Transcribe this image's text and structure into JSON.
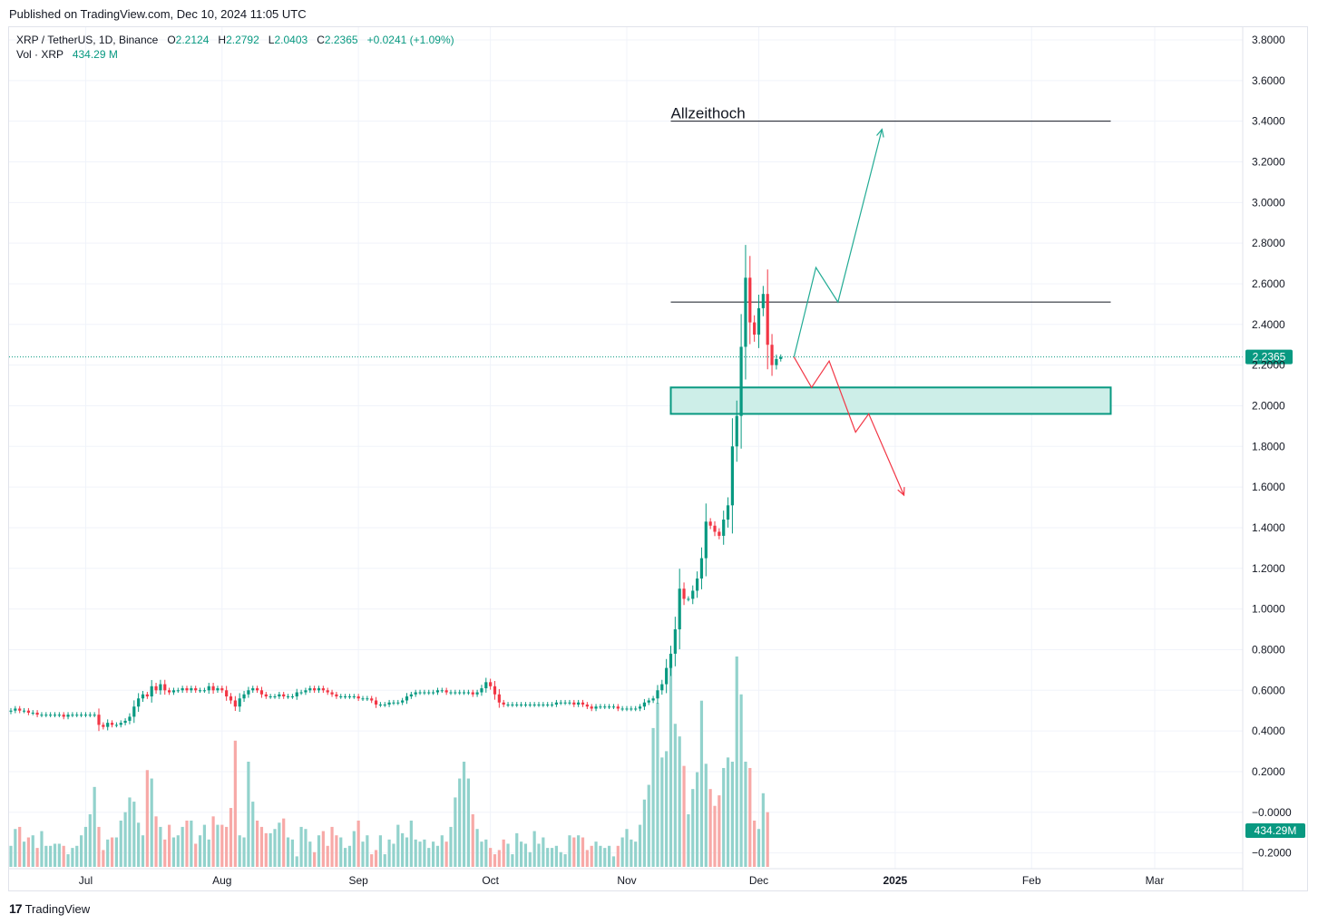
{
  "header": {
    "published": "Published on TradingView.com, Dec 10, 2024 11:05 UTC"
  },
  "legend": {
    "symbol": "XRP / TetherUS, 1D, Binance",
    "o_label": "O",
    "o_value": "2.2124",
    "h_label": "H",
    "h_value": "2.2792",
    "l_label": "L",
    "l_value": "2.0403",
    "c_label": "C",
    "c_value": "2.2365",
    "change": "+0.0241 (+1.09%)",
    "vol_label": "Vol · XRP",
    "vol_value": "434.29 M"
  },
  "footer": {
    "brand": "TradingView",
    "brand_mark": "17"
  },
  "colors": {
    "up": "#089981",
    "down": "#f23645",
    "vol_up": "#92d2cc",
    "vol_down": "#f7a9a7",
    "zone_fill": "#cdeee8",
    "zone_stroke": "#089981",
    "grid": "#f0f3fa"
  },
  "chart_data": {
    "type": "candlestick",
    "title": "XRP / TetherUS, 1D, Binance",
    "y_ticks": [
      "3.8000",
      "3.6000",
      "3.4000",
      "3.2000",
      "3.0000",
      "2.8000",
      "2.6000",
      "2.4000",
      "2.2000",
      "2.0000",
      "1.8000",
      "1.6000",
      "1.4000",
      "1.2000",
      "1.0000",
      "0.8000",
      "0.6000",
      "0.4000",
      "0.2000",
      "−0.0000",
      "−0.2000"
    ],
    "x_labels": [
      {
        "label": "Jul",
        "t": 17
      },
      {
        "label": "Aug",
        "t": 48
      },
      {
        "label": "Sep",
        "t": 79
      },
      {
        "label": "Oct",
        "t": 109
      },
      {
        "label": "Nov",
        "t": 140
      },
      {
        "label": "Dec",
        "t": 170
      },
      {
        "label": "2025",
        "t": 201
      },
      {
        "label": "Feb",
        "t": 232
      },
      {
        "label": "Mar",
        "t": 260
      }
    ],
    "ylim": [
      -0.2,
      3.8
    ],
    "last_price": "2.2365",
    "last_volume": "434.29M",
    "close_series": [
      0.5,
      0.51,
      0.5,
      0.5,
      0.49,
      0.49,
      0.48,
      0.48,
      0.48,
      0.48,
      0.48,
      0.48,
      0.47,
      0.48,
      0.48,
      0.48,
      0.48,
      0.48,
      0.48,
      0.48,
      0.43,
      0.42,
      0.44,
      0.43,
      0.43,
      0.44,
      0.45,
      0.47,
      0.52,
      0.56,
      0.58,
      0.57,
      0.62,
      0.6,
      0.63,
      0.6,
      0.59,
      0.6,
      0.6,
      0.61,
      0.6,
      0.61,
      0.6,
      0.6,
      0.6,
      0.62,
      0.6,
      0.61,
      0.6,
      0.57,
      0.55,
      0.52,
      0.56,
      0.58,
      0.6,
      0.61,
      0.6,
      0.58,
      0.57,
      0.57,
      0.57,
      0.58,
      0.57,
      0.57,
      0.57,
      0.59,
      0.59,
      0.6,
      0.61,
      0.6,
      0.61,
      0.6,
      0.59,
      0.58,
      0.57,
      0.57,
      0.57,
      0.57,
      0.57,
      0.56,
      0.56,
      0.56,
      0.55,
      0.53,
      0.53,
      0.53,
      0.54,
      0.54,
      0.54,
      0.55,
      0.57,
      0.58,
      0.59,
      0.59,
      0.59,
      0.59,
      0.59,
      0.6,
      0.6,
      0.59,
      0.59,
      0.59,
      0.59,
      0.59,
      0.59,
      0.58,
      0.59,
      0.61,
      0.64,
      0.62,
      0.58,
      0.54,
      0.53,
      0.53,
      0.53,
      0.53,
      0.53,
      0.53,
      0.53,
      0.53,
      0.53,
      0.53,
      0.53,
      0.53,
      0.54,
      0.54,
      0.54,
      0.54,
      0.53,
      0.54,
      0.53,
      0.52,
      0.51,
      0.52,
      0.52,
      0.52,
      0.52,
      0.52,
      0.51,
      0.51,
      0.51,
      0.51,
      0.51,
      0.52,
      0.54,
      0.55,
      0.56,
      0.6,
      0.63,
      0.71,
      0.78,
      0.9,
      1.1,
      1.05,
      1.05,
      1.09,
      1.15,
      1.25,
      1.43,
      1.41,
      1.38,
      1.36,
      1.44,
      1.51,
      1.8,
      1.95,
      2.29,
      2.63,
      2.41,
      2.35,
      2.48,
      2.55,
      2.3,
      2.2,
      2.23,
      2.24
    ],
    "volume_profile": [
      0.1,
      0.18,
      0.19,
      0.12,
      0.14,
      0.15,
      0.09,
      0.17,
      0.1,
      0.1,
      0.11,
      0.11,
      0.1,
      0.06,
      0.09,
      0.1,
      0.15,
      0.19,
      0.25,
      0.38,
      0.19,
      0.08,
      0.13,
      0.14,
      0.14,
      0.22,
      0.26,
      0.33,
      0.31,
      0.21,
      0.15,
      0.46,
      0.42,
      0.24,
      0.19,
      0.13,
      0.2,
      0.14,
      0.15,
      0.19,
      0.22,
      0.22,
      0.11,
      0.15,
      0.2,
      0.13,
      0.24,
      0.2,
      0.2,
      0.19,
      0.28,
      0.6,
      0.15,
      0.14,
      0.5,
      0.31,
      0.22,
      0.19,
      0.16,
      0.16,
      0.18,
      0.21,
      0.23,
      0.14,
      0.13,
      0.05,
      0.19,
      0.18,
      0.12,
      0.07,
      0.15,
      0.17,
      0.1,
      0.19,
      0.15,
      0.14,
      0.09,
      0.1,
      0.17,
      0.22,
      0.12,
      0.15,
      0.06,
      0.08,
      0.15,
      0.06,
      0.13,
      0.11,
      0.2,
      0.16,
      0.14,
      0.22,
      0.13,
      0.12,
      0.13,
      0.09,
      0.12,
      0.1,
      0.15,
      0.12,
      0.19,
      0.33,
      0.42,
      0.5,
      0.42,
      0.25,
      0.18,
      0.12,
      0.13,
      0.09,
      0.06,
      0.08,
      0.13,
      0.11,
      0.06,
      0.16,
      0.12,
      0.11,
      0.07,
      0.17,
      0.11,
      0.14,
      0.09,
      0.09,
      0.1,
      0.07,
      0.06,
      0.15,
      0.14,
      0.15,
      0.14,
      0.08,
      0.1,
      0.12,
      0.1,
      0.09,
      0.1,
      0.05,
      0.1,
      0.14,
      0.18,
      0.13,
      0.12,
      0.2,
      0.32,
      0.39,
      0.66,
      0.78,
      0.52,
      0.55,
      0.96,
      0.68,
      0.62,
      0.48,
      0.25,
      0.37,
      0.45,
      0.79,
      0.49,
      0.37,
      0.29,
      0.34,
      0.47,
      0.52,
      0.5,
      1.0,
      0.82,
      0.5,
      0.47,
      0.22,
      0.18,
      0.35,
      0.26
    ]
  },
  "annotations": {
    "ath_label": "Allzeithoch",
    "ath_level": 3.4,
    "resistance_level": 2.51,
    "zone_low": 1.96,
    "zone_high": 2.09,
    "bull_path": [
      [
        178,
        2.24
      ],
      [
        183,
        2.68
      ],
      [
        188,
        2.51
      ],
      [
        198,
        3.36
      ]
    ],
    "bear_path": [
      [
        178,
        2.24
      ],
      [
        182,
        2.09
      ],
      [
        186,
        2.22
      ],
      [
        192,
        1.87
      ],
      [
        195,
        1.96
      ],
      [
        203,
        1.56
      ]
    ]
  }
}
